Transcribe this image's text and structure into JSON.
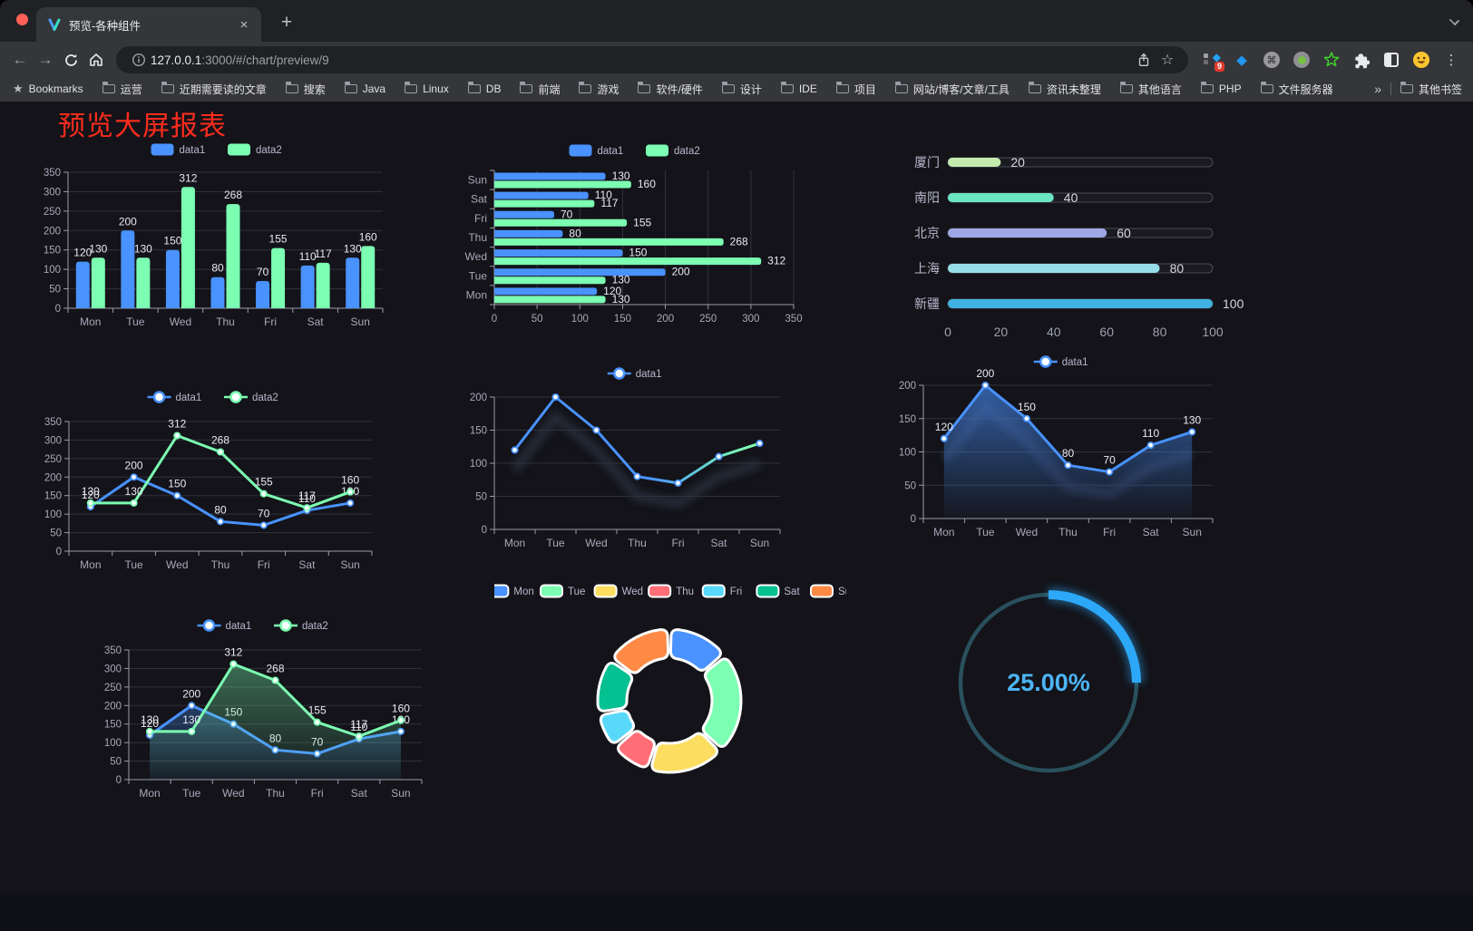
{
  "browser": {
    "tab": {
      "title": "预览-各种组件",
      "close_icon": "×",
      "new_tab_icon": "+"
    },
    "nav_icons": {
      "back": "←",
      "forward": "→"
    },
    "url": {
      "host": "127.0.0.1",
      "rest": ":3000/#/chart/preview/9"
    },
    "omnibox_icons": {
      "bookmark_star": "☆"
    },
    "extensions": {
      "badge": "9",
      "gem_icon": "◆",
      "grid_diamond_icon": "◆",
      "command_icon": "⌘",
      "menu_dots_icon": "⋮"
    },
    "bookmarks_bar": {
      "bookmarks_label": "Bookmarks",
      "folders": [
        "运营",
        "近期需要读的文章",
        "搜索",
        "Java",
        "Linux",
        "DB",
        "前端",
        "游戏",
        "软件/硬件",
        "设计",
        "IDE",
        "项目",
        "网站/博客/文章/工具",
        "资讯未整理",
        "其他语言",
        "PHP",
        "文件服务器"
      ],
      "overflow_icon": "»",
      "other_bookmarks_label": "其他书签"
    }
  },
  "page": {
    "title": "预览大屏报表",
    "title_color": "#fa2c1d"
  },
  "chart_data": [
    {
      "id": "grouped-bar",
      "type": "bar",
      "categories": [
        "Mon",
        "Tue",
        "Wed",
        "Thu",
        "Fri",
        "Sat",
        "Sun"
      ],
      "series": [
        {
          "name": "data1",
          "color": "#4992ff",
          "values": [
            120,
            200,
            150,
            80,
            70,
            110,
            130
          ]
        },
        {
          "name": "data2",
          "color": "#7cffb2",
          "values": [
            130,
            130,
            312,
            268,
            155,
            117,
            160
          ]
        }
      ],
      "ylim": [
        0,
        350
      ],
      "yticks": [
        0,
        50,
        100,
        150,
        200,
        250,
        300,
        350
      ],
      "legend_position": "top",
      "grid": true,
      "value_labels": true
    },
    {
      "id": "horizontal-bar",
      "type": "bar",
      "orientation": "horizontal",
      "categories": [
        "Mon",
        "Tue",
        "Wed",
        "Thu",
        "Fri",
        "Sat",
        "Sun"
      ],
      "series": [
        {
          "name": "data1",
          "color": "#4992ff",
          "values": [
            120,
            200,
            150,
            80,
            70,
            110,
            130
          ]
        },
        {
          "name": "data2",
          "color": "#7cffb2",
          "values": [
            130,
            130,
            312,
            268,
            155,
            117,
            160
          ]
        }
      ],
      "xlim": [
        0,
        350
      ],
      "xticks": [
        0,
        50,
        100,
        150,
        200,
        250,
        300,
        350
      ],
      "legend_position": "top",
      "grid": true,
      "value_labels": true
    },
    {
      "id": "progress-bars",
      "type": "bar",
      "orientation": "horizontal",
      "categories": [
        "厦门",
        "南阳",
        "北京",
        "上海",
        "新疆"
      ],
      "values": [
        20,
        40,
        60,
        80,
        100
      ],
      "bar_colors": [
        "#c4ebad",
        "#6be6c1",
        "#a0a7e6",
        "#96dee8",
        "#3fb1e3"
      ],
      "xlim": [
        0,
        100
      ],
      "xticks": [
        0,
        20,
        40,
        60,
        80,
        100
      ],
      "grid": false,
      "value_labels": true
    },
    {
      "id": "two-lines",
      "type": "line",
      "categories": [
        "Mon",
        "Tue",
        "Wed",
        "Thu",
        "Fri",
        "Sat",
        "Sun"
      ],
      "series": [
        {
          "name": "data1",
          "color": "#4992ff",
          "values": [
            120,
            200,
            150,
            80,
            70,
            110,
            130
          ]
        },
        {
          "name": "data2",
          "color": "#7cffb2",
          "values": [
            130,
            130,
            312,
            268,
            155,
            117,
            160
          ]
        }
      ],
      "ylim": [
        0,
        350
      ],
      "yticks": [
        0,
        50,
        100,
        150,
        200,
        250,
        300,
        350
      ],
      "legend_position": "top",
      "grid": true,
      "value_labels": true
    },
    {
      "id": "gradient-line",
      "type": "line",
      "categories": [
        "Mon",
        "Tue",
        "Wed",
        "Thu",
        "Fri",
        "Sat",
        "Sun"
      ],
      "series": [
        {
          "name": "data1",
          "gradient": [
            "#4992ff",
            "#7cffb2"
          ],
          "values": [
            120,
            200,
            150,
            80,
            70,
            110,
            130
          ]
        }
      ],
      "ylim": [
        0,
        200
      ],
      "yticks": [
        0,
        50,
        100,
        150,
        200
      ],
      "legend_position": "top",
      "grid": true,
      "value_labels": false,
      "shadow": true
    },
    {
      "id": "area-line",
      "type": "area",
      "categories": [
        "Mon",
        "Tue",
        "Wed",
        "Thu",
        "Fri",
        "Sat",
        "Sun"
      ],
      "series": [
        {
          "name": "data1",
          "color": "#4992ff",
          "values": [
            120,
            200,
            150,
            80,
            70,
            110,
            130
          ]
        }
      ],
      "ylim": [
        0,
        200
      ],
      "yticks": [
        0,
        50,
        100,
        150,
        200
      ],
      "legend_position": "top",
      "grid": true,
      "value_labels": true,
      "shadow": true
    },
    {
      "id": "two-areas",
      "type": "area",
      "categories": [
        "Mon",
        "Tue",
        "Wed",
        "Thu",
        "Fri",
        "Sat",
        "Sun"
      ],
      "series": [
        {
          "name": "data1",
          "color": "#4992ff",
          "values": [
            120,
            200,
            150,
            80,
            70,
            110,
            130
          ]
        },
        {
          "name": "data2",
          "color": "#7cffb2",
          "values": [
            130,
            130,
            312,
            268,
            155,
            117,
            160
          ]
        }
      ],
      "ylim": [
        0,
        350
      ],
      "yticks": [
        0,
        50,
        100,
        150,
        200,
        250,
        300,
        350
      ],
      "legend_position": "top",
      "grid": true,
      "value_labels": true
    },
    {
      "id": "donut",
      "type": "pie",
      "categories": [
        "Mon",
        "Tue",
        "Wed",
        "Thu",
        "Fri",
        "Sat",
        "Sun"
      ],
      "values": [
        120,
        200,
        150,
        80,
        70,
        110,
        130
      ],
      "colors": [
        "#4992ff",
        "#7cffb2",
        "#fddd60",
        "#ff6e76",
        "#58d9f9",
        "#05c091",
        "#ff8a45"
      ],
      "donut": true,
      "border_color": "#ffffff",
      "legend_position": "top"
    },
    {
      "id": "gauge",
      "type": "gauge",
      "value": 25,
      "label": "25.00%",
      "color": "#2da8f8",
      "track_color": "#29505c",
      "text_color": "#4cb5f6"
    }
  ]
}
